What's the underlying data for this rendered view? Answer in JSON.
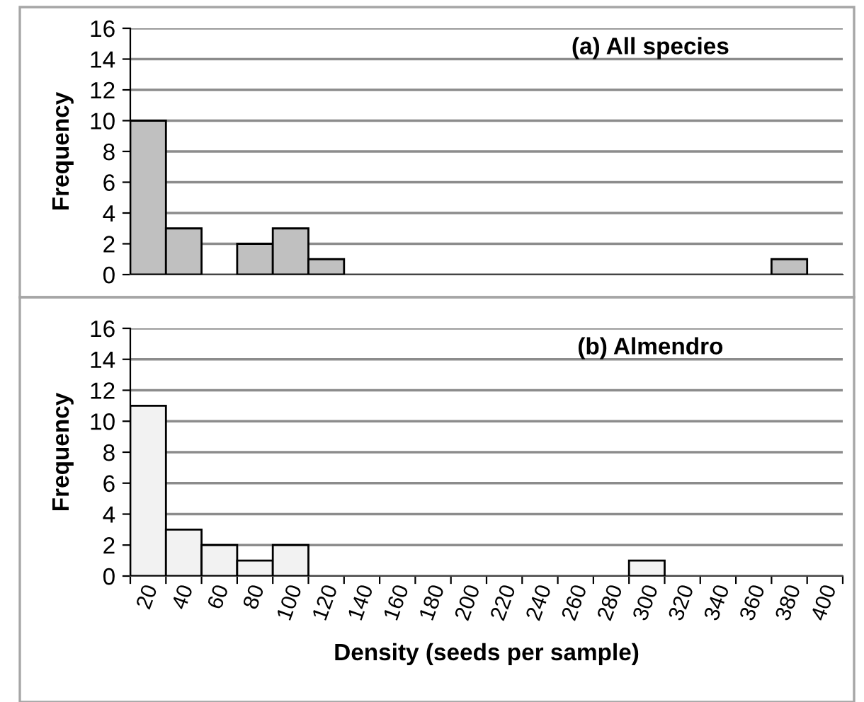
{
  "chart_data": [
    {
      "type": "bar",
      "title": "(a) All species",
      "ylabel": "Frequency",
      "categories": [
        null,
        null,
        null,
        null,
        null,
        null,
        null,
        null,
        null,
        null,
        null,
        null,
        null,
        null,
        null,
        null,
        null,
        null,
        null,
        null
      ],
      "series": [
        {
          "color": "#c0c0c0",
          "values": [
            10,
            3,
            0,
            2,
            3,
            1,
            0,
            0,
            0,
            0,
            0,
            0,
            0,
            0,
            0,
            0,
            0,
            0,
            1,
            0
          ]
        }
      ],
      "ylim": [
        0,
        16
      ],
      "yticks": [
        0,
        2,
        4,
        6,
        8,
        10,
        12,
        14,
        16
      ],
      "grid": "y",
      "tick_labels": "y"
    },
    {
      "type": "bar",
      "title": "(b) Almendro",
      "ylabel": "Frequency",
      "xlabel": "Density (seeds per sample)",
      "categories": [
        "20",
        "40",
        "60",
        "80",
        "100",
        "120",
        "140",
        "160",
        "180",
        "200",
        "220",
        "240",
        "260",
        "280",
        "300",
        "320",
        "340",
        "360",
        "380",
        "400"
      ],
      "series": [
        {
          "color": "#f2f2f2",
          "values": [
            11,
            3,
            2,
            1,
            2,
            0,
            0,
            0,
            0,
            0,
            0,
            0,
            0,
            0,
            1,
            0,
            0,
            0,
            0,
            0
          ]
        }
      ],
      "ylim": [
        0,
        16
      ],
      "yticks": [
        0,
        2,
        4,
        6,
        8,
        10,
        12,
        14,
        16
      ],
      "grid": "y"
    }
  ]
}
